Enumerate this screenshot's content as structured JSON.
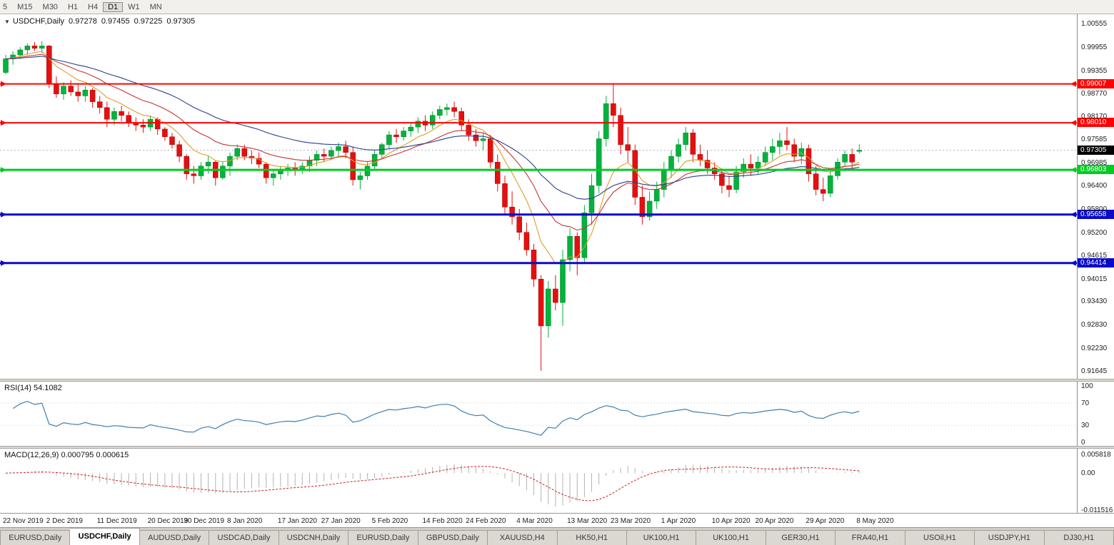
{
  "toolbar": {
    "timeframes": [
      {
        "label": "5",
        "active": false
      },
      {
        "label": "M15",
        "active": false
      },
      {
        "label": "M30",
        "active": false
      },
      {
        "label": "H1",
        "active": false
      },
      {
        "label": "H4",
        "active": false
      },
      {
        "label": "D1",
        "active": true
      },
      {
        "label": "W1",
        "active": false
      },
      {
        "label": "MN",
        "active": false
      }
    ]
  },
  "chart": {
    "dropdown_glyph": "▼",
    "symbol_header": "USDCHF,Daily",
    "ohlc": {
      "open": "0.97278",
      "high": "0.97455",
      "low": "0.97225",
      "close": "0.97305"
    },
    "price_axis_labels": [
      "1.00555",
      "0.99955",
      "0.99355",
      "0.98770",
      "0.98170",
      "0.97585",
      "0.96985",
      "0.96400",
      "0.95800",
      "0.95200",
      "0.94615",
      "0.94015",
      "0.93430",
      "0.92830",
      "0.92230",
      "0.91645"
    ]
  },
  "chart_data": {
    "type": "candlestick",
    "symbol": "USDCHF",
    "timeframe": "Daily",
    "y_axis": {
      "price_top": 1.00793,
      "price_bottom": 0.91444
    },
    "current_price": 0.97305,
    "levels": [
      {
        "price": 0.99007,
        "label": "0.99007",
        "color": "#ff0000",
        "width": 2
      },
      {
        "price": 0.9801,
        "label": "0.98010",
        "color": "#ff0000",
        "width": 2
      },
      {
        "price": 0.96803,
        "label": "0.96803",
        "color": "#00cc22",
        "width": 3
      },
      {
        "price": 0.95658,
        "label": "0.95658",
        "color": "#0a0ac8",
        "width": 3
      },
      {
        "price": 0.94414,
        "label": "0.94414",
        "color": "#0a0ac8",
        "width": 3
      }
    ],
    "indicators": {
      "moving_averages": [
        {
          "name": "fast",
          "period": 8,
          "color": "#e09c28"
        },
        {
          "name": "mid",
          "period": 17,
          "color": "#c43535"
        },
        {
          "name": "slow",
          "period": 34,
          "color": "#2b3f8e"
        }
      ],
      "rsi": {
        "period": 14,
        "value": "54.1082"
      },
      "macd": {
        "fast": 12,
        "slow": 26,
        "signal": 9,
        "scale_max": 0.005818,
        "scale_min": -0.011516
      }
    },
    "x_labels": [
      {
        "i": 0,
        "t": "22 Nov 2019"
      },
      {
        "i": 6,
        "t": "2 Dec 2019"
      },
      {
        "i": 13,
        "t": "11 Dec 2019"
      },
      {
        "i": 20,
        "t": "20 Dec 2019"
      },
      {
        "i": 25,
        "t": "30 Dec 2019"
      },
      {
        "i": 31,
        "t": "8 Jan 2020"
      },
      {
        "i": 38,
        "t": "17 Jan 2020"
      },
      {
        "i": 44,
        "t": "27 Jan 2020"
      },
      {
        "i": 51,
        "t": "5 Feb 2020"
      },
      {
        "i": 58,
        "t": "14 Feb 2020"
      },
      {
        "i": 64,
        "t": "24 Feb 2020"
      },
      {
        "i": 71,
        "t": "4 Mar 2020"
      },
      {
        "i": 78,
        "t": "13 Mar 2020"
      },
      {
        "i": 84,
        "t": "23 Mar 2020"
      },
      {
        "i": 91,
        "t": "1 Apr 2020"
      },
      {
        "i": 98,
        "t": "10 Apr 2020"
      },
      {
        "i": 104,
        "t": "20 Apr 2020"
      },
      {
        "i": 111,
        "t": "29 Apr 2020"
      },
      {
        "i": 118,
        "t": "8 May 2020"
      }
    ],
    "candles": [
      [
        0.993,
        0.9975,
        0.9925,
        0.9965
      ],
      [
        0.9965,
        0.9985,
        0.995,
        0.9975
      ],
      [
        0.9975,
        0.9995,
        0.9965,
        0.9988
      ],
      [
        0.9988,
        1.0005,
        0.9975,
        0.9998
      ],
      [
        0.9998,
        1.0008,
        0.9985,
        0.9992
      ],
      [
        0.9992,
        1.001,
        0.998,
        0.9998
      ],
      [
        0.9998,
        1.0,
        0.989,
        0.99
      ],
      [
        0.99,
        0.992,
        0.9865,
        0.9875
      ],
      [
        0.9875,
        0.9905,
        0.986,
        0.9895
      ],
      [
        0.9895,
        0.991,
        0.987,
        0.988
      ],
      [
        0.988,
        0.99,
        0.9855,
        0.987
      ],
      [
        0.987,
        0.9895,
        0.9855,
        0.9885
      ],
      [
        0.9885,
        0.989,
        0.984,
        0.9855
      ],
      [
        0.9855,
        0.987,
        0.9825,
        0.984
      ],
      [
        0.984,
        0.9855,
        0.979,
        0.981
      ],
      [
        0.981,
        0.984,
        0.9795,
        0.983
      ],
      [
        0.983,
        0.9845,
        0.9805,
        0.982
      ],
      [
        0.982,
        0.983,
        0.979,
        0.98
      ],
      [
        0.98,
        0.9815,
        0.978,
        0.9795
      ],
      [
        0.9795,
        0.981,
        0.9775,
        0.979
      ],
      [
        0.979,
        0.982,
        0.978,
        0.981
      ],
      [
        0.981,
        0.9815,
        0.977,
        0.9785
      ],
      [
        0.9785,
        0.979,
        0.9755,
        0.9765
      ],
      [
        0.9765,
        0.9775,
        0.9735,
        0.9745
      ],
      [
        0.9745,
        0.9755,
        0.97,
        0.9715
      ],
      [
        0.9715,
        0.972,
        0.9655,
        0.967
      ],
      [
        0.967,
        0.969,
        0.9645,
        0.9665
      ],
      [
        0.9665,
        0.97,
        0.9655,
        0.969
      ],
      [
        0.969,
        0.9715,
        0.967,
        0.97
      ],
      [
        0.97,
        0.9705,
        0.964,
        0.966
      ],
      [
        0.966,
        0.97,
        0.9655,
        0.969
      ],
      [
        0.969,
        0.9725,
        0.9665,
        0.9715
      ],
      [
        0.9715,
        0.9745,
        0.9705,
        0.9735
      ],
      [
        0.9735,
        0.9745,
        0.9705,
        0.9715
      ],
      [
        0.9715,
        0.973,
        0.9695,
        0.971
      ],
      [
        0.971,
        0.9725,
        0.9685,
        0.9695
      ],
      [
        0.9695,
        0.97,
        0.9645,
        0.966
      ],
      [
        0.966,
        0.968,
        0.964,
        0.967
      ],
      [
        0.967,
        0.969,
        0.9655,
        0.968
      ],
      [
        0.968,
        0.9695,
        0.9665,
        0.9685
      ],
      [
        0.9685,
        0.97,
        0.9665,
        0.968
      ],
      [
        0.968,
        0.97,
        0.967,
        0.969
      ],
      [
        0.969,
        0.9715,
        0.9675,
        0.9705
      ],
      [
        0.9705,
        0.973,
        0.969,
        0.972
      ],
      [
        0.972,
        0.9735,
        0.97,
        0.9715
      ],
      [
        0.9715,
        0.974,
        0.9705,
        0.973
      ],
      [
        0.973,
        0.975,
        0.9715,
        0.974
      ],
      [
        0.974,
        0.9755,
        0.971,
        0.9725
      ],
      [
        0.9725,
        0.974,
        0.964,
        0.9655
      ],
      [
        0.9655,
        0.9675,
        0.963,
        0.9665
      ],
      [
        0.9665,
        0.97,
        0.9655,
        0.969
      ],
      [
        0.969,
        0.973,
        0.968,
        0.972
      ],
      [
        0.972,
        0.975,
        0.971,
        0.9745
      ],
      [
        0.9745,
        0.978,
        0.9735,
        0.977
      ],
      [
        0.977,
        0.9785,
        0.975,
        0.9765
      ],
      [
        0.9765,
        0.979,
        0.9755,
        0.978
      ],
      [
        0.978,
        0.98,
        0.9765,
        0.979
      ],
      [
        0.979,
        0.9815,
        0.9775,
        0.9805
      ],
      [
        0.9805,
        0.982,
        0.978,
        0.9795
      ],
      [
        0.9795,
        0.983,
        0.9785,
        0.982
      ],
      [
        0.982,
        0.9845,
        0.981,
        0.9835
      ],
      [
        0.9835,
        0.985,
        0.982,
        0.984
      ],
      [
        0.984,
        0.9855,
        0.9815,
        0.983
      ],
      [
        0.983,
        0.984,
        0.978,
        0.9795
      ],
      [
        0.9795,
        0.981,
        0.9755,
        0.977
      ],
      [
        0.977,
        0.9785,
        0.974,
        0.9755
      ],
      [
        0.9755,
        0.9775,
        0.973,
        0.976
      ],
      [
        0.976,
        0.977,
        0.9685,
        0.97
      ],
      [
        0.97,
        0.972,
        0.9625,
        0.9645
      ],
      [
        0.9645,
        0.9665,
        0.9565,
        0.9585
      ],
      [
        0.9585,
        0.9625,
        0.954,
        0.956
      ],
      [
        0.956,
        0.958,
        0.95,
        0.952
      ],
      [
        0.952,
        0.9545,
        0.946,
        0.9475
      ],
      [
        0.9475,
        0.949,
        0.938,
        0.94
      ],
      [
        0.94,
        0.941,
        0.9165,
        0.928
      ],
      [
        0.928,
        0.9395,
        0.925,
        0.9375
      ],
      [
        0.9375,
        0.941,
        0.932,
        0.934
      ],
      [
        0.934,
        0.9475,
        0.928,
        0.945
      ],
      [
        0.945,
        0.953,
        0.942,
        0.951
      ],
      [
        0.951,
        0.952,
        0.941,
        0.9455
      ],
      [
        0.9455,
        0.959,
        0.944,
        0.957
      ],
      [
        0.957,
        0.967,
        0.954,
        0.964
      ],
      [
        0.964,
        0.978,
        0.962,
        0.976
      ],
      [
        0.976,
        0.987,
        0.974,
        0.985
      ],
      [
        0.985,
        0.9901,
        0.979,
        0.982
      ],
      [
        0.982,
        0.984,
        0.972,
        0.9745
      ],
      [
        0.9745,
        0.979,
        0.97,
        0.973
      ],
      [
        0.973,
        0.9745,
        0.959,
        0.961
      ],
      [
        0.961,
        0.964,
        0.954,
        0.956
      ],
      [
        0.956,
        0.9625,
        0.955,
        0.96
      ],
      [
        0.96,
        0.965,
        0.958,
        0.963
      ],
      [
        0.963,
        0.97,
        0.961,
        0.968
      ],
      [
        0.968,
        0.973,
        0.966,
        0.9715
      ],
      [
        0.9715,
        0.976,
        0.97,
        0.9745
      ],
      [
        0.9745,
        0.979,
        0.973,
        0.9775
      ],
      [
        0.9775,
        0.9785,
        0.97,
        0.972
      ],
      [
        0.972,
        0.9745,
        0.969,
        0.9705
      ],
      [
        0.9705,
        0.973,
        0.967,
        0.9685
      ],
      [
        0.9685,
        0.97,
        0.9655,
        0.967
      ],
      [
        0.967,
        0.968,
        0.962,
        0.964
      ],
      [
        0.964,
        0.9665,
        0.961,
        0.963
      ],
      [
        0.963,
        0.969,
        0.962,
        0.9675
      ],
      [
        0.9675,
        0.971,
        0.966,
        0.9695
      ],
      [
        0.9695,
        0.972,
        0.9665,
        0.9685
      ],
      [
        0.9685,
        0.9715,
        0.967,
        0.97
      ],
      [
        0.97,
        0.974,
        0.969,
        0.9725
      ],
      [
        0.9725,
        0.976,
        0.9705,
        0.974
      ],
      [
        0.974,
        0.9775,
        0.972,
        0.9755
      ],
      [
        0.9755,
        0.979,
        0.973,
        0.9745
      ],
      [
        0.9745,
        0.976,
        0.97,
        0.9715
      ],
      [
        0.9715,
        0.975,
        0.9695,
        0.9735
      ],
      [
        0.9735,
        0.9745,
        0.965,
        0.967
      ],
      [
        0.967,
        0.969,
        0.9615,
        0.963
      ],
      [
        0.963,
        0.966,
        0.96,
        0.962
      ],
      [
        0.962,
        0.968,
        0.961,
        0.9665
      ],
      [
        0.9665,
        0.971,
        0.9655,
        0.97
      ],
      [
        0.97,
        0.973,
        0.969,
        0.972
      ],
      [
        0.972,
        0.9735,
        0.968,
        0.97
      ],
      [
        0.97278,
        0.97455,
        0.97225,
        0.97305
      ]
    ]
  },
  "rsi": {
    "label": "RSI(14) 54.1082",
    "axis_labels": [
      "100",
      "70",
      "30",
      "0"
    ]
  },
  "macd": {
    "label": "MACD(12,26,9) 0.000795 0.000615",
    "axis_labels": [
      "0.005818",
      "0.00",
      "-0.011516"
    ]
  },
  "tabs": [
    {
      "label": "EURUSD,Daily",
      "active": false
    },
    {
      "label": "USDCHF,Daily",
      "active": true
    },
    {
      "label": "AUDUSD,Daily",
      "active": false
    },
    {
      "label": "USDCAD,Daily",
      "active": false
    },
    {
      "label": "USDCNH,Daily",
      "active": false
    },
    {
      "label": "EURUSD,Daily",
      "active": false
    },
    {
      "label": "GBPUSD,Daily",
      "active": false
    },
    {
      "label": "XAUUSD,H4",
      "active": false
    },
    {
      "label": "HK50,H1",
      "active": false
    },
    {
      "label": "UK100,H1",
      "active": false
    },
    {
      "label": "UK100,H1",
      "active": false
    },
    {
      "label": "GER30,H1",
      "active": false
    },
    {
      "label": "FRA40,H1",
      "active": false
    },
    {
      "label": "USOil,H1",
      "active": false
    },
    {
      "label": "USDJPY,H1",
      "active": false
    },
    {
      "label": "DJ30,H1",
      "active": false
    }
  ],
  "theme": {
    "up": "#00b33c",
    "up_border": "#007d26",
    "down": "#e60f0f",
    "down_border": "#a30000",
    "rsi_line": "#3f7fae",
    "macd_hist": "#b3b3b3",
    "macd_signal": "#cc2222",
    "current_badge": "#000000",
    "current_line": "#b4b4b4"
  }
}
